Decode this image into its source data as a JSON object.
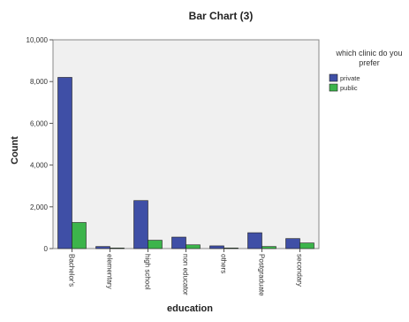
{
  "chart_data": {
    "type": "bar",
    "title": "Bar Chart (3)",
    "xlabel": "education",
    "ylabel": "Count",
    "ylim": [
      0,
      10000
    ],
    "yticks": [
      "0",
      "2,000",
      "4,000",
      "6,000",
      "8,000",
      "10,000"
    ],
    "categories": [
      "Bachelor's",
      "elementary",
      "high school",
      "non educator",
      "others",
      "Postgraduate",
      "secondary"
    ],
    "legend_title": "which clinic do you prefer",
    "legend_position": "top-right",
    "grid": false,
    "series": [
      {
        "name": "private",
        "color": "#3f4fa6",
        "values": [
          8200,
          100,
          2300,
          550,
          130,
          760,
          480
        ]
      },
      {
        "name": "public",
        "color": "#3cb44b",
        "values": [
          1250,
          30,
          400,
          180,
          30,
          100,
          270
        ]
      }
    ]
  }
}
